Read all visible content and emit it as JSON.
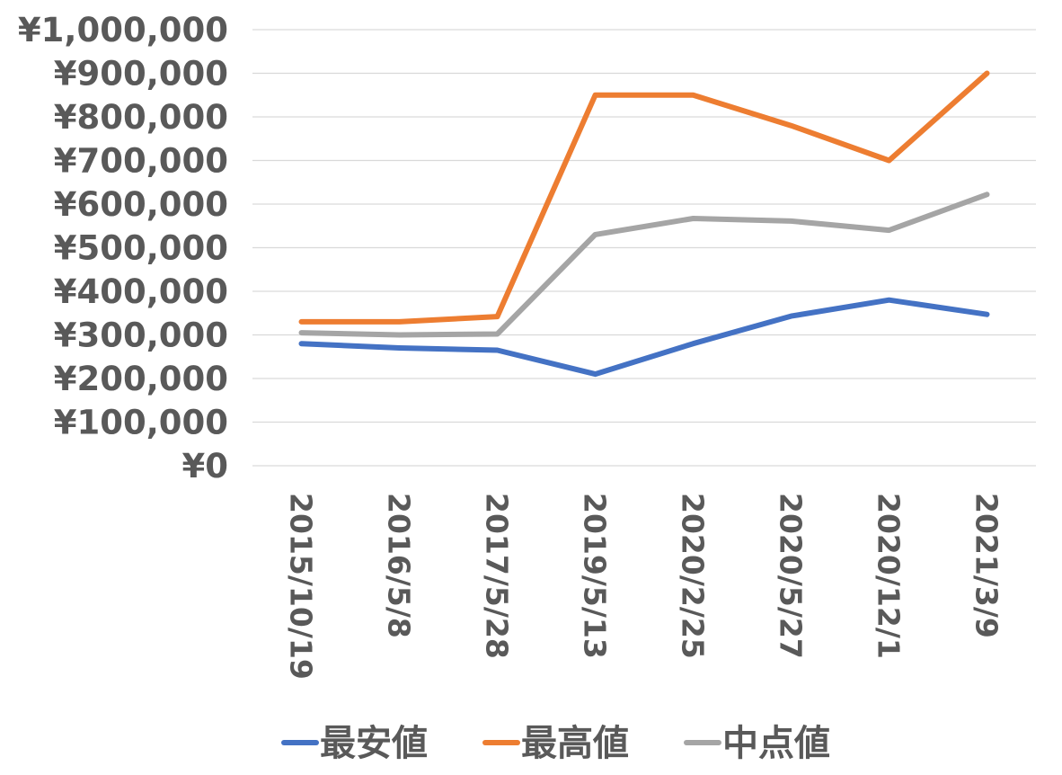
{
  "chart_data": {
    "type": "line",
    "categories": [
      "2015/10/19",
      "2016/5/8",
      "2017/5/28",
      "2019/5/13",
      "2020/2/25",
      "2020/5/27",
      "2020/12/1",
      "2021/3/9"
    ],
    "series": [
      {
        "name": "最安値",
        "color": "#4472C4",
        "values": [
          280000,
          270000,
          265000,
          210000,
          280000,
          343000,
          380000,
          347000
        ]
      },
      {
        "name": "最高値",
        "color": "#ED7D31",
        "values": [
          330000,
          330000,
          342000,
          850000,
          850000,
          780000,
          700000,
          900000
        ]
      },
      {
        "name": "中点値",
        "color": "#A5A5A5",
        "values": [
          305000,
          300000,
          302000,
          530000,
          567000,
          561000,
          540000,
          622000
        ]
      }
    ],
    "yticks": [
      "¥0",
      "¥100,000",
      "¥200,000",
      "¥300,000",
      "¥400,000",
      "¥500,000",
      "¥600,000",
      "¥700,000",
      "¥800,000",
      "¥900,000",
      "¥1,000,000"
    ],
    "ylim": [
      0,
      1000000
    ],
    "grid": true,
    "legend_position": "bottom"
  }
}
